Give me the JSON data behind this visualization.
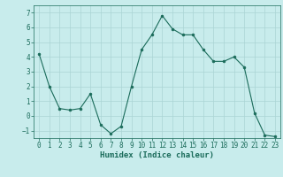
{
  "x": [
    0,
    1,
    2,
    3,
    4,
    5,
    6,
    7,
    8,
    9,
    10,
    11,
    12,
    13,
    14,
    15,
    16,
    17,
    18,
    19,
    20,
    21,
    22,
    23
  ],
  "y": [
    4.2,
    2.0,
    0.5,
    0.4,
    0.5,
    1.5,
    -0.6,
    -1.2,
    -0.7,
    2.0,
    4.5,
    5.5,
    6.8,
    5.9,
    5.5,
    5.5,
    4.5,
    3.7,
    3.7,
    4.0,
    3.3,
    0.2,
    -1.3,
    -1.4
  ],
  "line_color": "#1a6b5a",
  "marker": "o",
  "marker_size": 2,
  "bg_color": "#c8ecec",
  "grid_color": "#aad4d4",
  "xlabel": "Humidex (Indice chaleur)",
  "xlim": [
    -0.5,
    23.5
  ],
  "ylim": [
    -1.5,
    7.5
  ],
  "yticks": [
    -1,
    0,
    1,
    2,
    3,
    4,
    5,
    6,
    7
  ],
  "xticks": [
    0,
    1,
    2,
    3,
    4,
    5,
    6,
    7,
    8,
    9,
    10,
    11,
    12,
    13,
    14,
    15,
    16,
    17,
    18,
    19,
    20,
    21,
    22,
    23
  ],
  "tick_fontsize": 5.5,
  "xlabel_fontsize": 6.5
}
